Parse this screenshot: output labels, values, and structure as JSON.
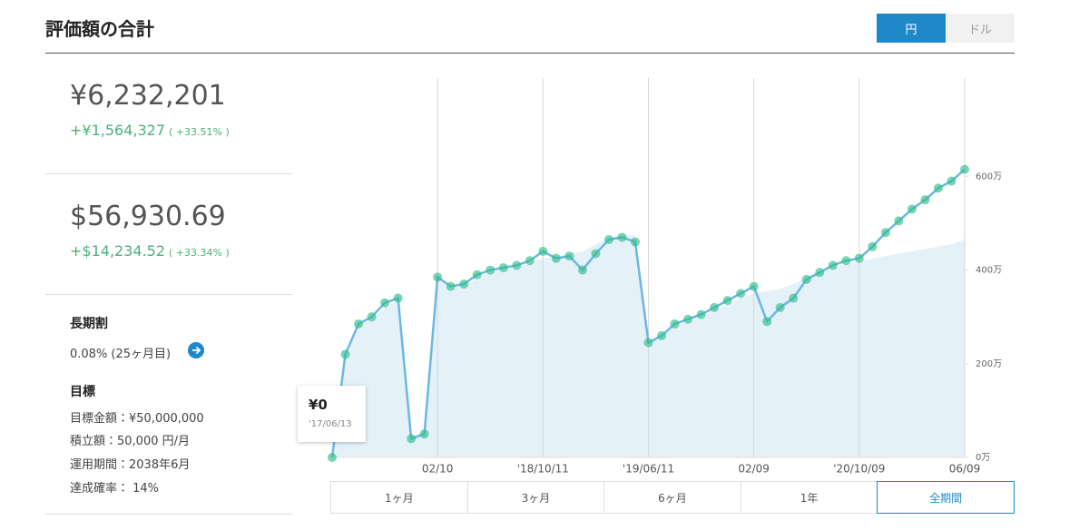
{
  "header": {
    "title": "評価額の合計",
    "currency_toggle": [
      "円",
      "ドル"
    ]
  },
  "summary": {
    "jpy": {
      "value": "¥6,232,201",
      "change": "+¥1,564,327",
      "change_pct": "( +33.51% )"
    },
    "usd": {
      "value": "$56,930.69",
      "change": "+$14,234.52",
      "change_pct": "( +33.34% )"
    }
  },
  "discount": {
    "label": "長期割",
    "text": "0.08% (25ヶ月目)"
  },
  "goal": {
    "label": "目標",
    "items": [
      "目標金額：¥50,000,000",
      "積立額：50,000 円/月",
      "運用期間：2038年6月",
      "達成確率： 14%"
    ]
  },
  "tooltip": {
    "value": "¥0",
    "date": "'17/06/13"
  },
  "chart_data": {
    "type": "line",
    "categories": [
      null,
      null,
      null,
      null,
      null,
      null,
      null,
      null,
      "02/10",
      null,
      null,
      null,
      null,
      null,
      null,
      null,
      "'18/10/11",
      null,
      null,
      null,
      null,
      null,
      null,
      null,
      "'19/06/11",
      null,
      null,
      null,
      null,
      null,
      null,
      null,
      "02/09",
      null,
      null,
      null,
      null,
      null,
      null,
      null,
      "'20/10/09",
      null,
      null,
      null,
      null,
      null,
      null,
      null,
      "06/09"
    ],
    "series": [
      {
        "color": "#6cb6e6",
        "marker_color": "#2fbf8a",
        "values": [
          0,
          220,
          285,
          300,
          330,
          340,
          40,
          50,
          385,
          365,
          370,
          390,
          400,
          405,
          410,
          420,
          440,
          425,
          430,
          400,
          435,
          465,
          470,
          460,
          245,
          260,
          285,
          295,
          305,
          320,
          335,
          350,
          365,
          290,
          320,
          340,
          380,
          395,
          410,
          420,
          425,
          450,
          480,
          505,
          530,
          550,
          575,
          590,
          615
        ]
      },
      {
        "color": "#e4f1f9",
        "area": true,
        "values": [
          0,
          210,
          280,
          295,
          320,
          335,
          45,
          52,
          380,
          360,
          365,
          380,
          395,
          400,
          405,
          415,
          425,
          430,
          435,
          440,
          455,
          470,
          475,
          475,
          245,
          258,
          280,
          290,
          300,
          315,
          325,
          340,
          350,
          355,
          360,
          370,
          385,
          395,
          405,
          412,
          418,
          425,
          430,
          435,
          440,
          445,
          450,
          455,
          465
        ]
      }
    ],
    "ylim": [
      0,
      810
    ],
    "yticks": [
      {
        "value": 0,
        "label": "0万"
      },
      {
        "value": 200,
        "label": "200万"
      },
      {
        "value": 400,
        "label": "400万"
      },
      {
        "value": 600,
        "label": "600万"
      }
    ],
    "grid": true
  },
  "range_buttons": [
    "1ヶ月",
    "3ヶ月",
    "6ヶ月",
    "1年",
    "全期間"
  ]
}
